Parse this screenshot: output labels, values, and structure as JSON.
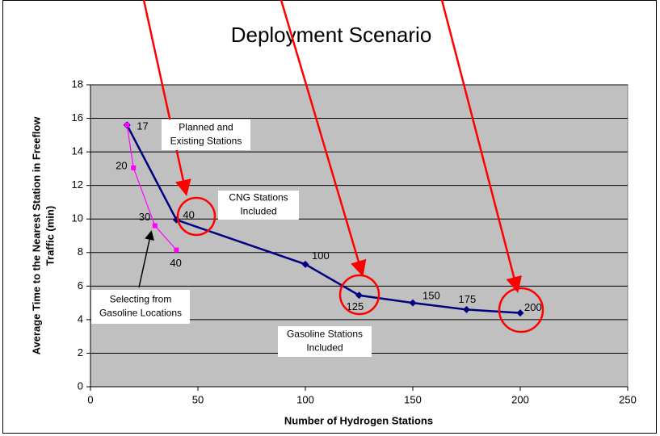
{
  "chart_data": {
    "type": "line",
    "title": "Deployment Scenario",
    "xlabel": "Number of Hydrogen Stations",
    "ylabel": [
      "Average Time to the Nearest Station in Freeflow",
      "Traffic (min)"
    ],
    "xlim": [
      0,
      250
    ],
    "xticks": [
      0,
      50,
      100,
      150,
      200,
      250
    ],
    "ylim": [
      0,
      18
    ],
    "yticks": [
      0,
      2,
      4,
      6,
      8,
      10,
      12,
      14,
      16,
      18
    ],
    "grid": true,
    "series": [
      {
        "color": "#000080",
        "marker": "diamond",
        "x": [
          17,
          40,
          100,
          125,
          150,
          175,
          200
        ],
        "values": [
          15.6,
          9.95,
          7.3,
          5.45,
          5.0,
          4.6,
          4.4
        ]
      },
      {
        "color": "#ff00ff",
        "marker": "square",
        "x": [
          17,
          20,
          30,
          40
        ],
        "values": [
          15.6,
          13.05,
          9.6,
          8.15
        ]
      }
    ],
    "annotations": [
      [
        "Planned and",
        "Existing Stations"
      ],
      [
        "CNG Stations",
        "Included"
      ],
      [
        "Gasoline Stations",
        "Included"
      ],
      [
        "Selecting from",
        "Gasoline Locations"
      ]
    ]
  }
}
